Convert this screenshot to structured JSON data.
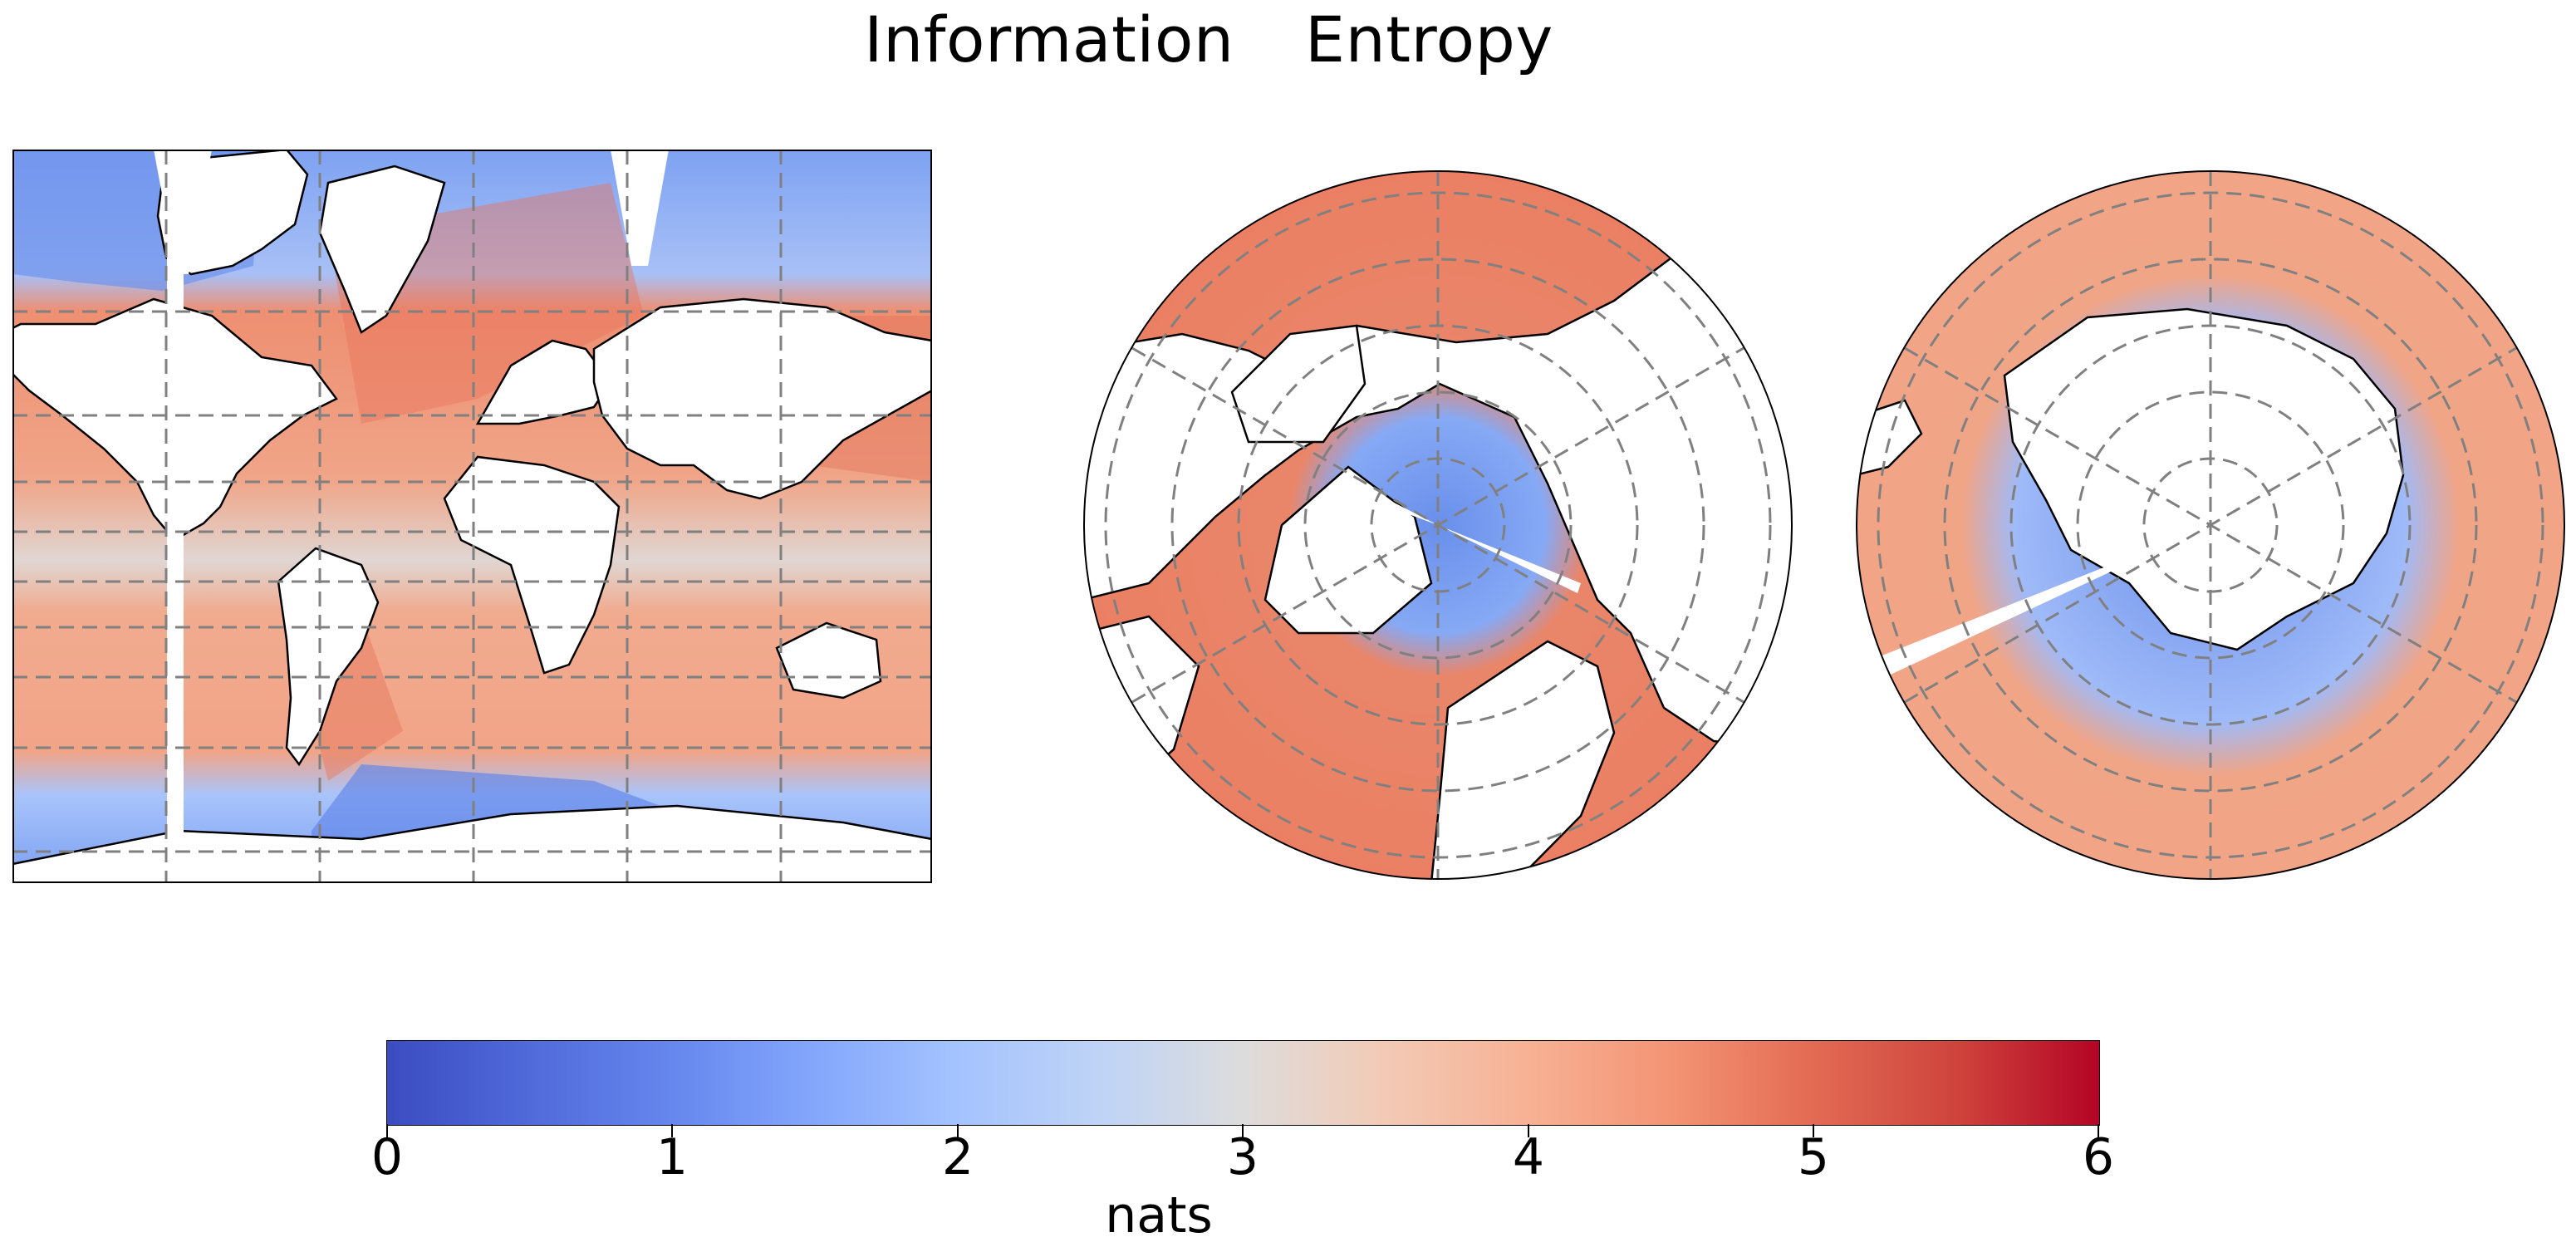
{
  "figure": {
    "title": "Information    Entropy"
  },
  "panels": [
    {
      "name": "world",
      "projection": "Mercator"
    },
    {
      "name": "arctic",
      "projection": "North Polar Stereographic"
    },
    {
      "name": "antarctic",
      "projection": "South Polar Stereographic"
    }
  ],
  "colorbar": {
    "label": "nats",
    "min": 0,
    "max": 6,
    "ticks": [
      "0",
      "1",
      "2",
      "3",
      "4",
      "5",
      "6"
    ],
    "colormap": [
      "#3b4cc0",
      "#4f69d9",
      "#6788ee",
      "#84a7fc",
      "#a3c2fe",
      "#c0d4f5",
      "#dddcdc",
      "#f2cbb7",
      "#f7b093",
      "#f39475",
      "#e36c55",
      "#cd423b",
      "#b40426"
    ]
  },
  "colors": {
    "high_entropy_ocean": "#ee8f72",
    "low_entropy_polar": "#7ea2f2",
    "equatorial_band": "#e2d4cf",
    "land": "#ffffff",
    "gridline": "#808080"
  }
}
